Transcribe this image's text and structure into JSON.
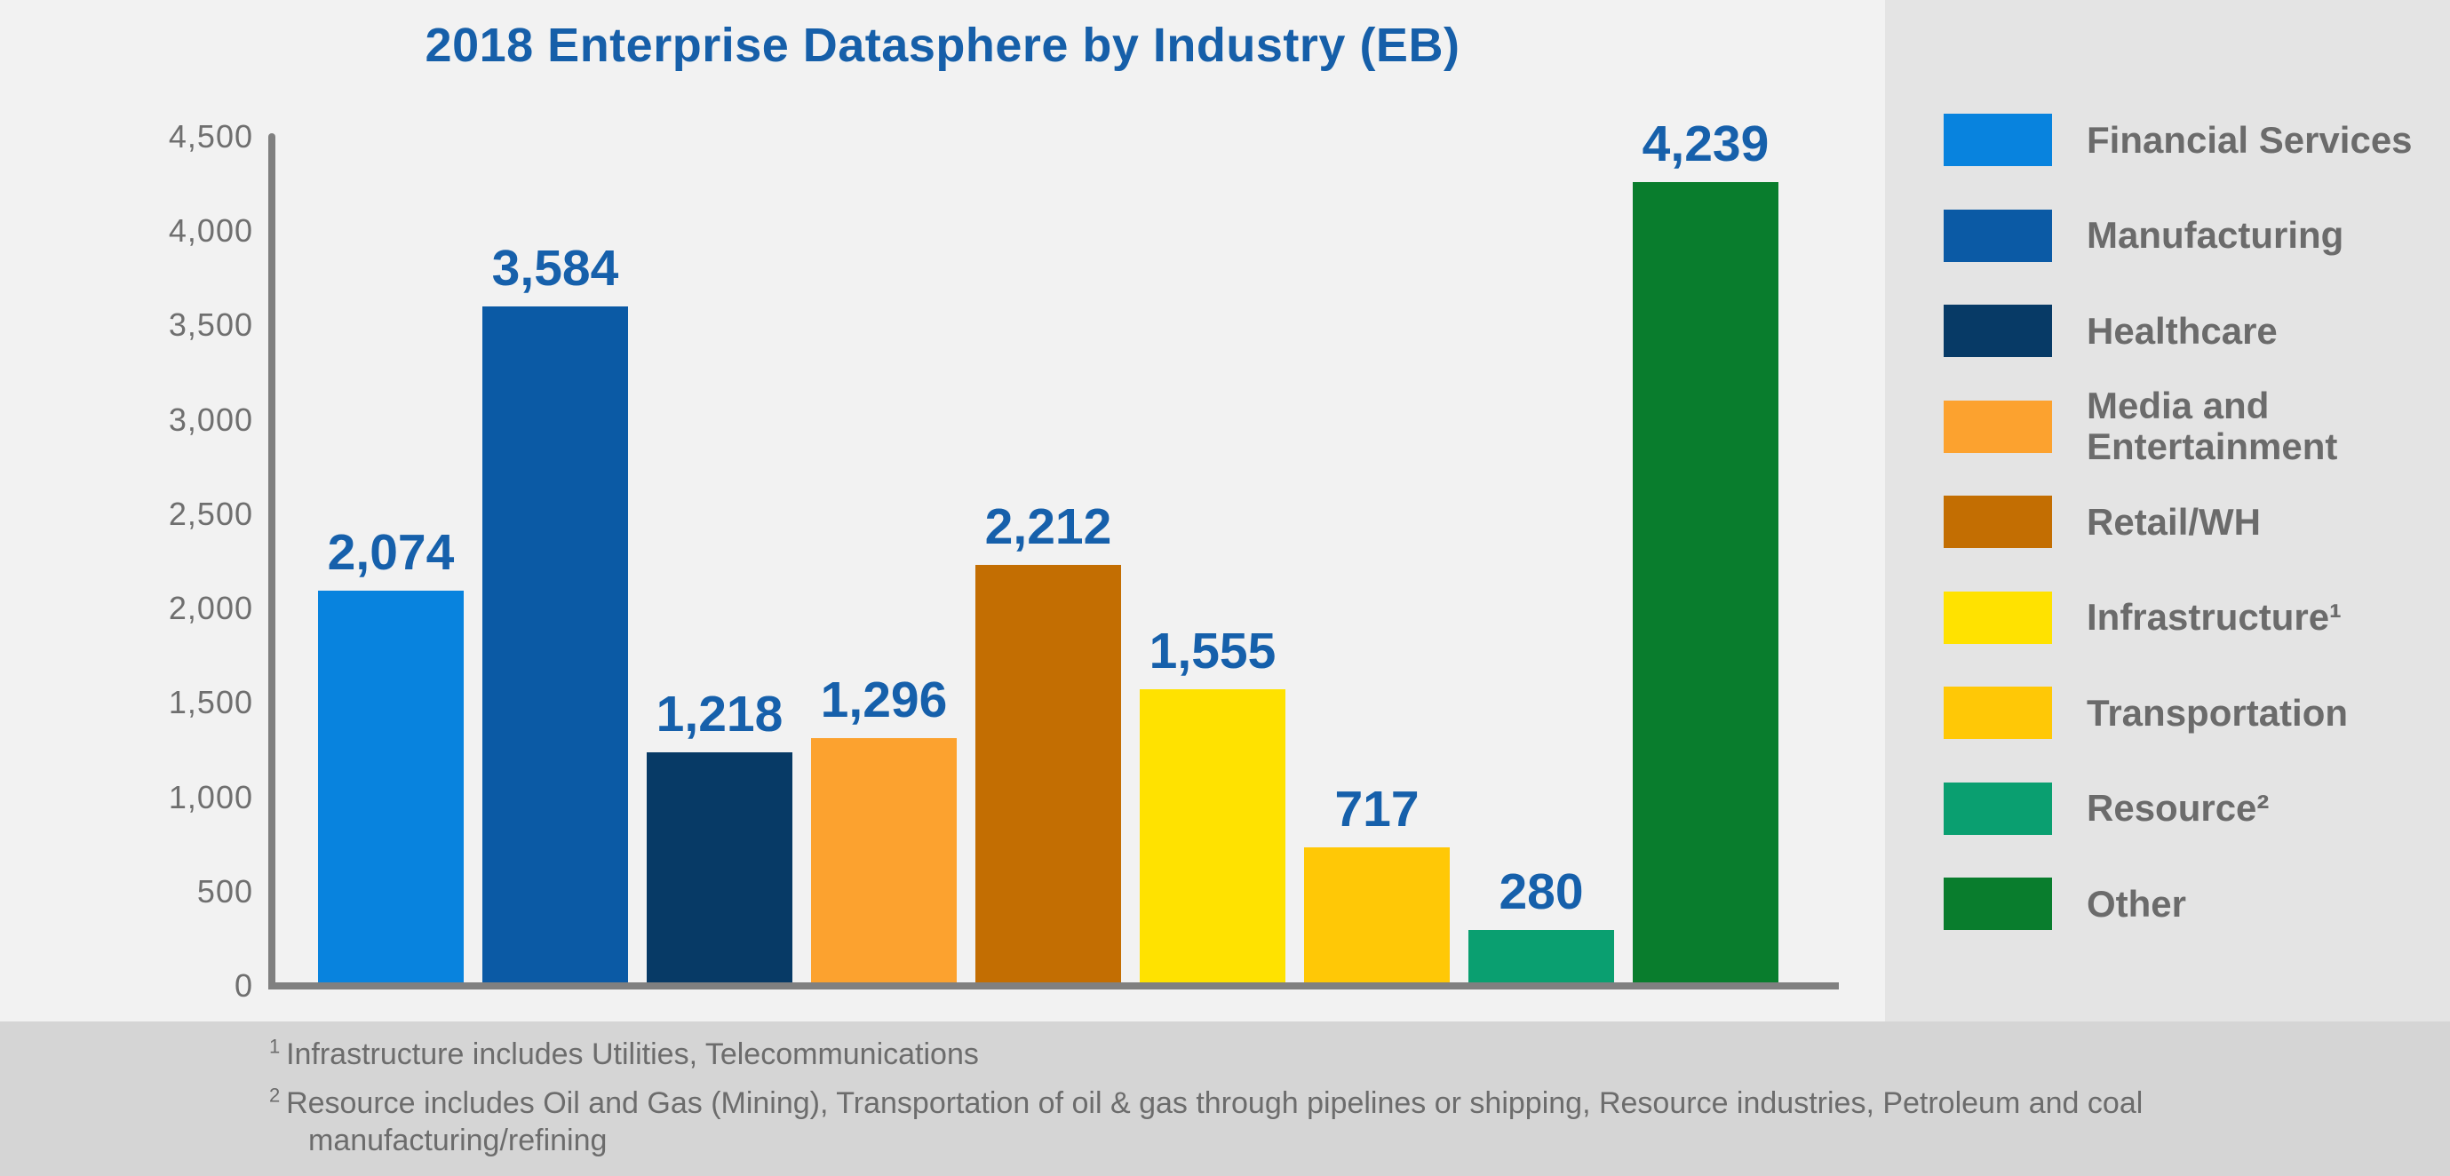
{
  "title": "2018 Enterprise Datasphere by Industry (EB)",
  "chart_data": {
    "type": "bar",
    "title": "2018 Enterprise Datasphere by Industry (EB)",
    "categories": [
      "Financial Services",
      "Manufacturing",
      "Healthcare",
      "Media and Entertainment",
      "Retail/WH",
      "Infrastructure1",
      "Transportation",
      "Resource2",
      "Other"
    ],
    "values": [
      2074,
      3584,
      1218,
      1296,
      2212,
      1555,
      717,
      280,
      4239
    ],
    "value_labels": [
      "2,074",
      "3,584",
      "1,218",
      "1,296",
      "2,212",
      "1,555",
      "717",
      "280",
      "4,239"
    ],
    "bar_colors": [
      "#0883DE",
      "#0B5AA5",
      "#073A66",
      "#FCA22F",
      "#C36E02",
      "#FFE200",
      "#FFC806",
      "#0A9F70",
      "#097D2D"
    ],
    "xlabel": "",
    "ylabel": "",
    "ylim": [
      0,
      4500
    ],
    "yticks": [
      "4,500",
      "4,000",
      "3,500",
      "3,000",
      "2,500",
      "2,000",
      "1,500",
      "1,000",
      "500",
      "0"
    ],
    "grid": false,
    "legend_position": "right"
  },
  "legend": {
    "items": [
      {
        "label": "Financial Services",
        "color": "#0883DE"
      },
      {
        "label": "Manufacturing",
        "color": "#0B5AA5"
      },
      {
        "label": "Healthcare",
        "color": "#073A66"
      },
      {
        "label": "Media and Entertainment",
        "color": "#FCA22F"
      },
      {
        "label": "Retail/WH",
        "color": "#C36E02"
      },
      {
        "label": "Infrastructure¹",
        "color": "#FFE200"
      },
      {
        "label": "Transportation",
        "color": "#FFC806"
      },
      {
        "label": "Resource²",
        "color": "#0A9F70"
      },
      {
        "label": "Other",
        "color": "#097D2D"
      }
    ]
  },
  "footnotes": [
    {
      "sup": "1",
      "lines": [
        "Infrastructure includes Utilities, Telecommunications"
      ]
    },
    {
      "sup": "2",
      "lines": [
        "Resource includes Oil and Gas (Mining), Transportation of oil & gas through pipelines or shipping, Resource industries, Petroleum and coal",
        "manufacturing/refining"
      ]
    }
  ],
  "colors": {
    "chart_bg": "#F2F2F2",
    "legend_bg": "#E4E4E4",
    "footer_bg": "#D5D5D5",
    "axis": "#808080",
    "tick_text": "#6F6F6F",
    "title_text": "#165FA9",
    "value_text": "#1660AB",
    "legend_text": "#6B6B6B",
    "footnote_text": "#6C6C6C"
  }
}
